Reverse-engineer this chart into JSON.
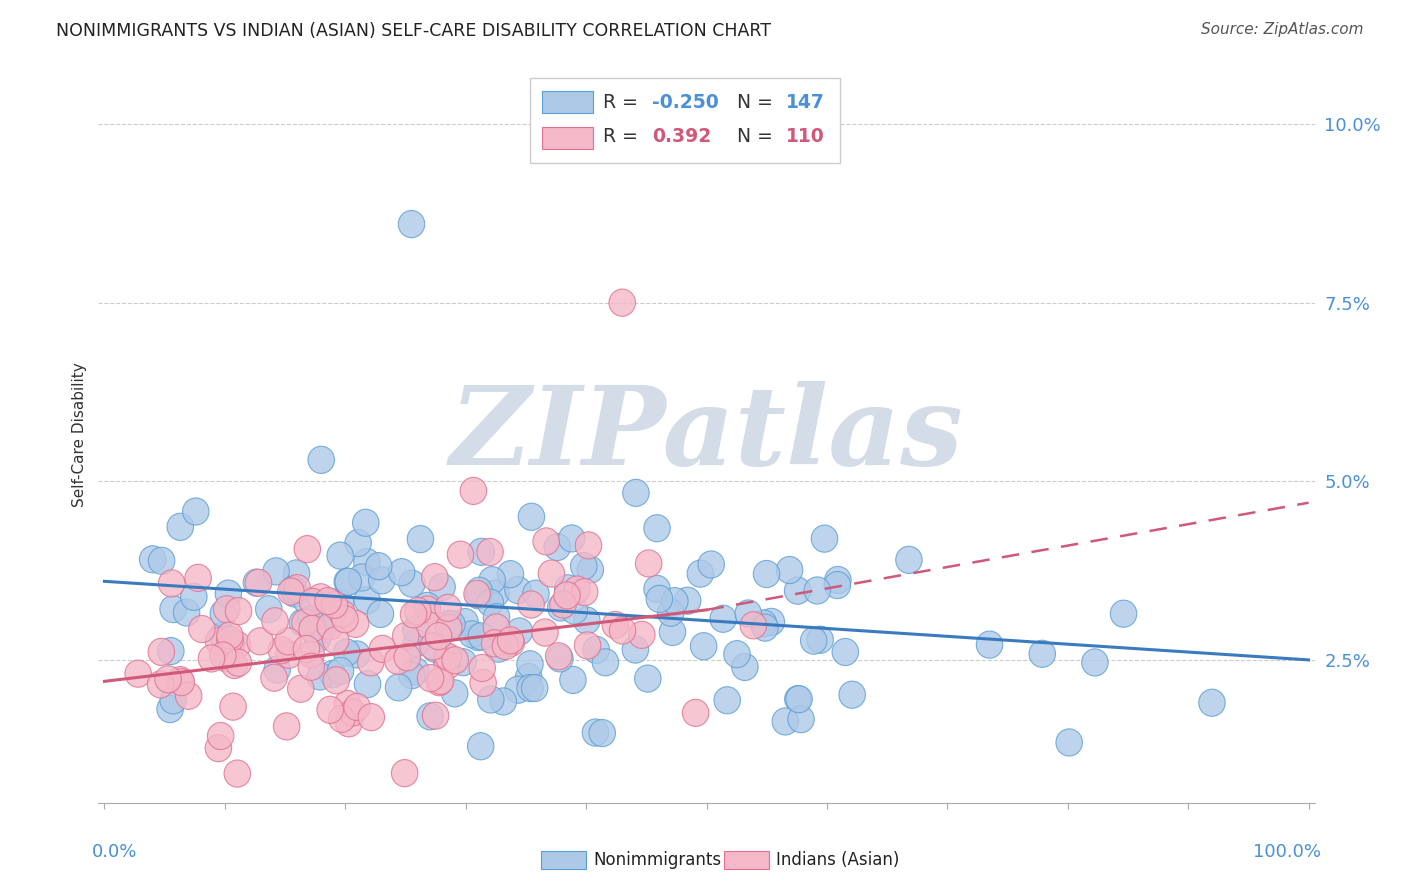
{
  "title": "NONIMMIGRANTS VS INDIAN (ASIAN) SELF-CARE DISABILITY CORRELATION CHART",
  "source": "Source: ZipAtlas.com",
  "ylabel": "Self-Care Disability",
  "blue_R": -0.25,
  "blue_N": 147,
  "pink_R": 0.392,
  "pink_N": 110,
  "blue_face_color": "#aec9e8",
  "blue_edge_color": "#5a9fd4",
  "pink_face_color": "#f4b8c8",
  "pink_edge_color": "#e07090",
  "trend_blue_color": "#3a7bbf",
  "trend_pink_color": "#d05878",
  "background_color": "#ffffff",
  "grid_color": "#cccccc",
  "watermark_color": "#d4dce8",
  "tick_color": "#4a90d9",
  "ytick_vals": [
    0.025,
    0.05,
    0.075,
    0.1
  ],
  "ytick_labels": [
    "2.5%",
    "5.0%",
    "7.5%",
    "10.0%"
  ],
  "ylim_min": 0.005,
  "ylim_max": 0.108,
  "xlim_min": -0.005,
  "xlim_max": 1.005,
  "blue_trend_x_start": 0.0,
  "blue_trend_x_end": 1.0,
  "blue_trend_y_start": 0.036,
  "blue_trend_y_end": 0.025,
  "pink_trend_x_solid_start": 0.0,
  "pink_trend_x_solid_end": 0.5,
  "pink_trend_y_solid_start": 0.022,
  "pink_trend_y_solid_end": 0.032,
  "pink_trend_x_dash_start": 0.5,
  "pink_trend_x_dash_end": 1.0,
  "pink_trend_y_dash_start": 0.032,
  "pink_trend_y_dash_end": 0.047,
  "legend_blue_label": "Nonimmigrants",
  "legend_pink_label": "Indians (Asian)"
}
